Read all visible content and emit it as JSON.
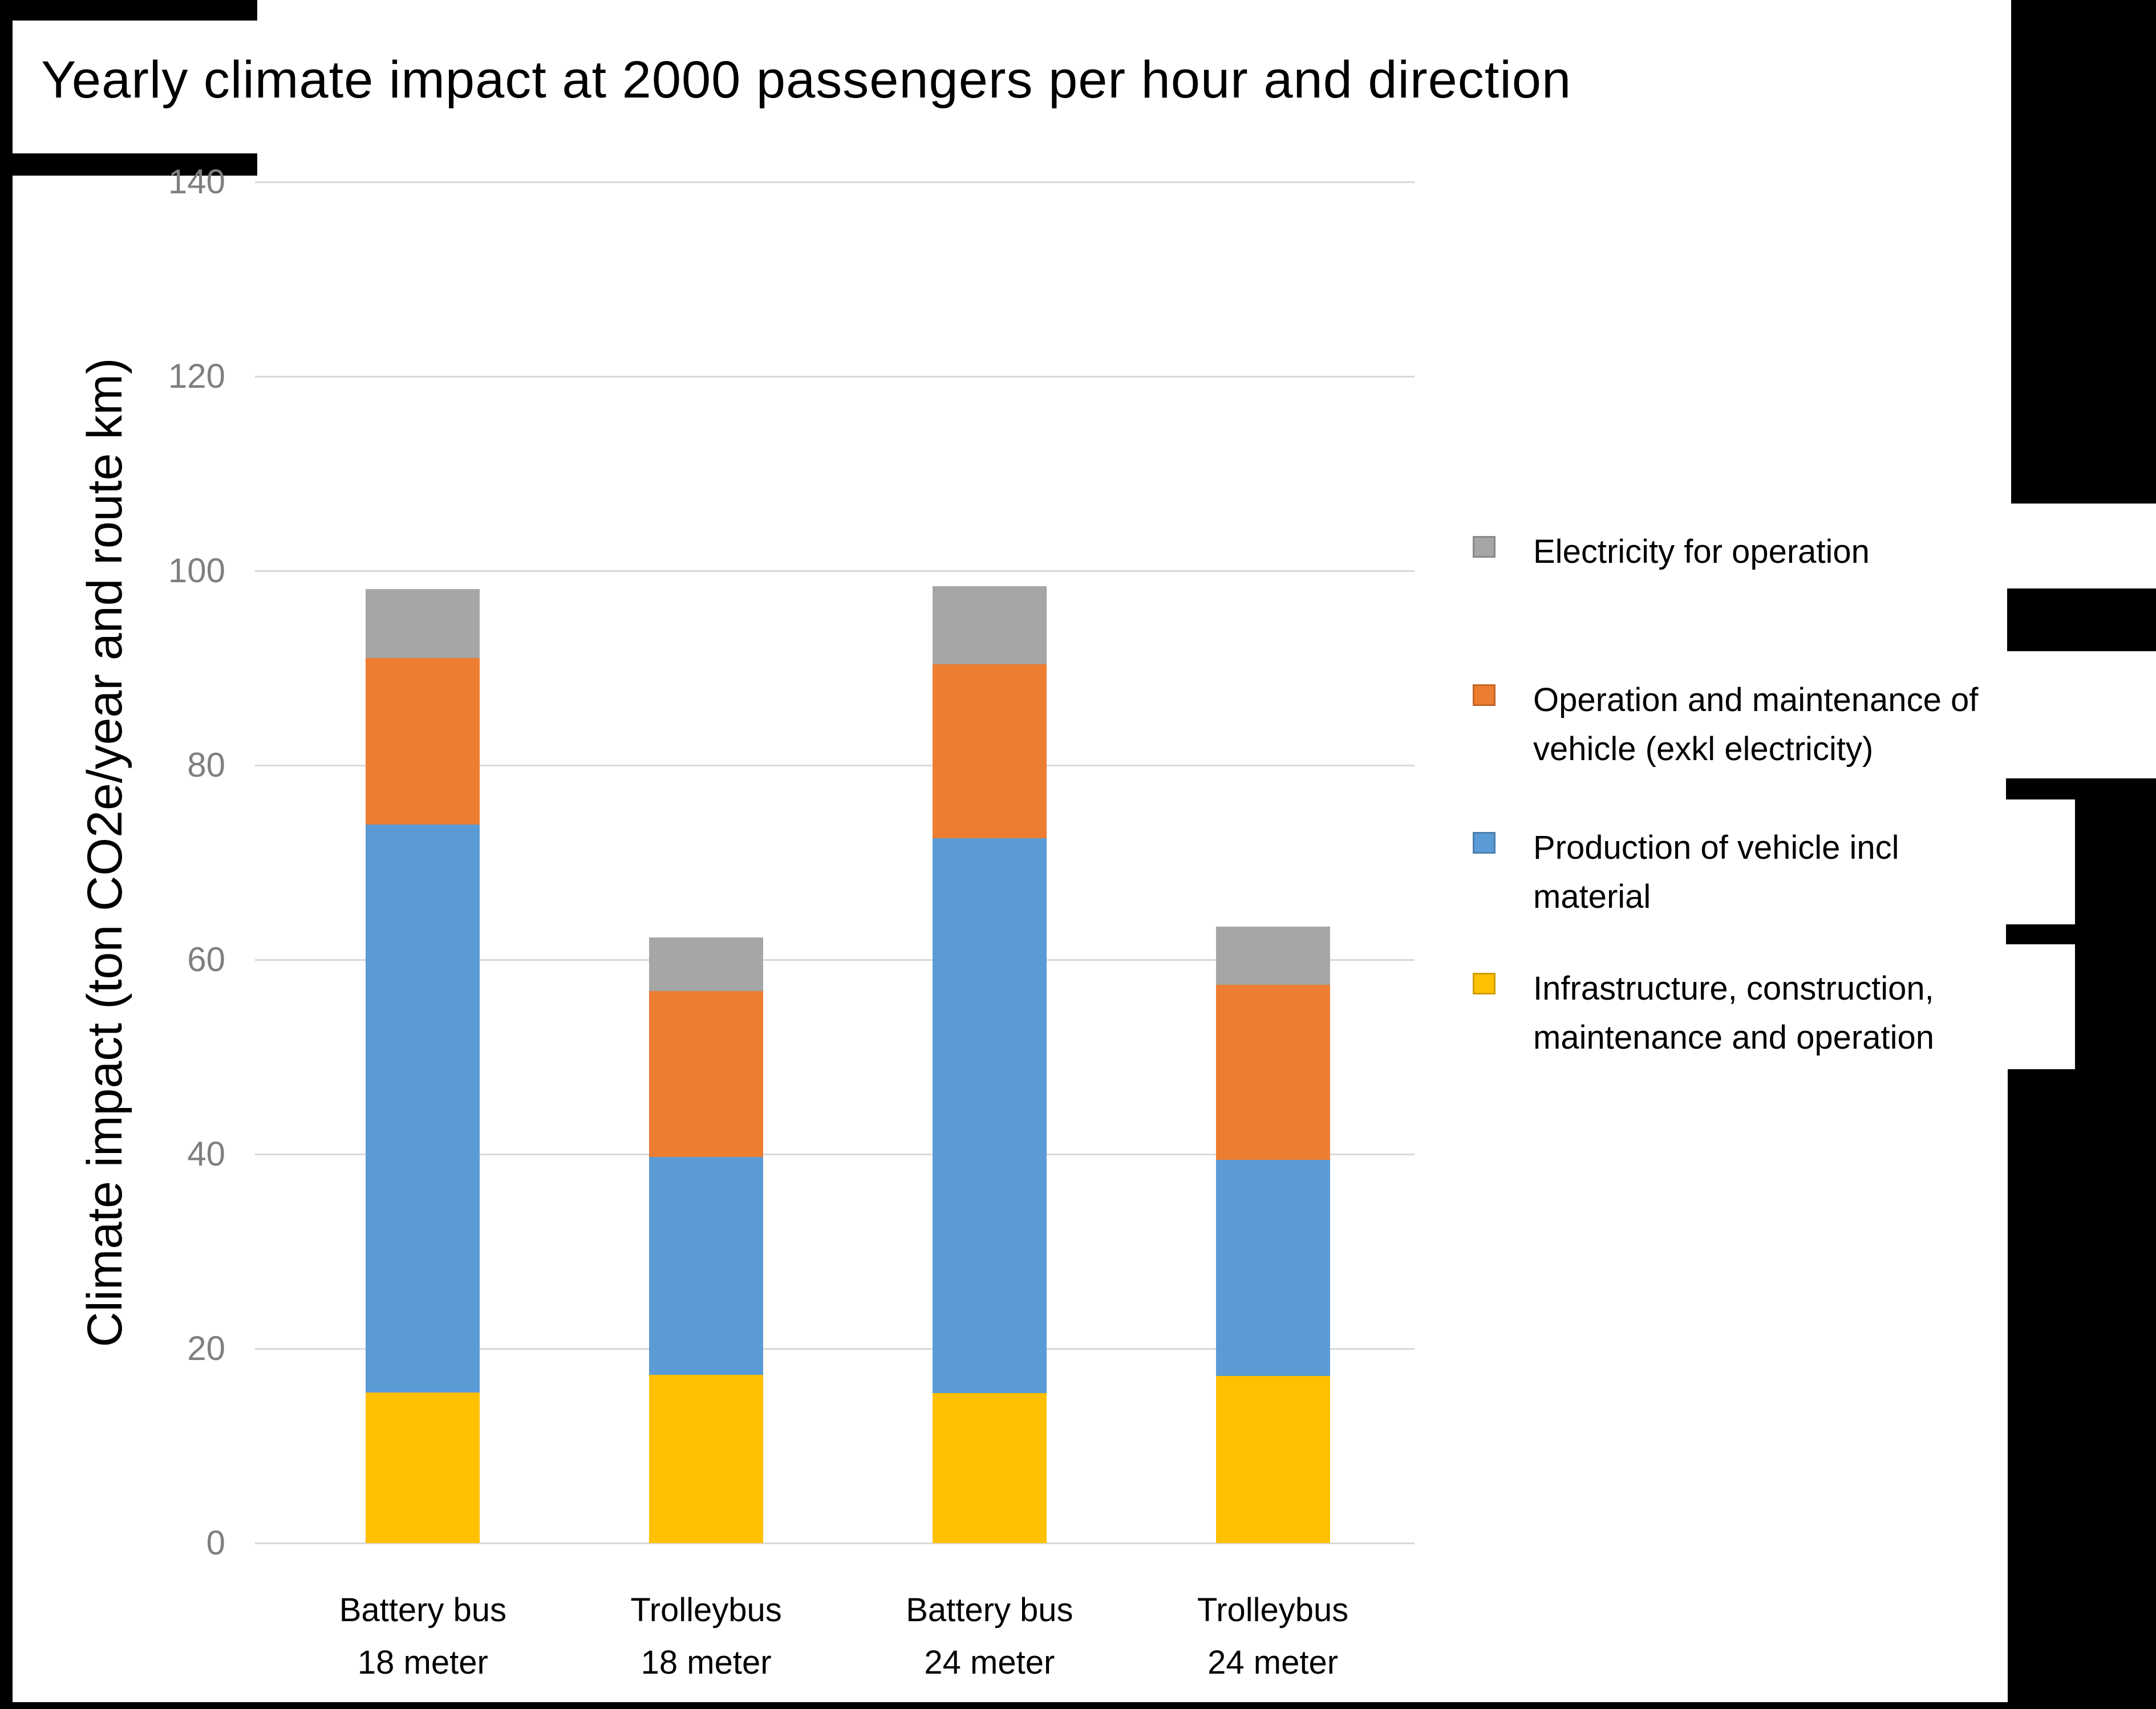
{
  "page": {
    "title": "Yearly climate impact at 2000 passengers per hour and direction"
  },
  "chart_data": {
    "type": "bar",
    "stacked": true,
    "title": "Yearly climate impact at 2000 passengers per hour and direction",
    "xlabel": "",
    "ylabel": "Climate impact (ton CO2e/year and route km)",
    "ylim": [
      0,
      140
    ],
    "yticks": [
      0,
      20,
      40,
      60,
      80,
      100,
      120,
      140
    ],
    "grid": "horizontal",
    "legend_position": "right",
    "categories": [
      "Battery bus 18 meter",
      "Trolleybus 18 meter",
      "Battery bus 24 meter",
      "Trolleybus 24 meter"
    ],
    "category_lines": [
      [
        "Battery bus",
        "18 meter"
      ],
      [
        "Trolleybus",
        "18 meter"
      ],
      [
        "Battery bus",
        "24 meter"
      ],
      [
        "Trolleybus",
        "24 meter"
      ]
    ],
    "series": [
      {
        "name": "Infrastructure, construction, maintenance and operation",
        "color": "#FFC000",
        "values": [
          15.5,
          17.3,
          15.4,
          17.2
        ]
      },
      {
        "name": "Production of vehicle incl material",
        "color": "#5B9BD5",
        "values": [
          58.4,
          22.4,
          57.1,
          22.2
        ]
      },
      {
        "name": "Operation and maintenance of vehicle (exkl electricity)",
        "color": "#ED7D31",
        "values": [
          17.1,
          17.1,
          17.9,
          18.0
        ]
      },
      {
        "name": "Electricity for operation",
        "color": "#A6A6A6",
        "values": [
          7.1,
          5.5,
          8.0,
          6.0
        ]
      }
    ],
    "totals": [
      98.1,
      62.3,
      98.4,
      63.4
    ],
    "legend": [
      {
        "color": "#A6A6A6",
        "lines": [
          "Electricity for operation"
        ]
      },
      {
        "color": "#ED7D31",
        "lines": [
          "Operation and maintenance of",
          "vehicle (exkl electricity)"
        ]
      },
      {
        "color": "#5B9BD5",
        "lines": [
          "Production of vehicle incl",
          "material"
        ]
      },
      {
        "color": "#FFC000",
        "lines": [
          "Infrastructure, construction,",
          "maintenance and operation"
        ]
      }
    ]
  }
}
